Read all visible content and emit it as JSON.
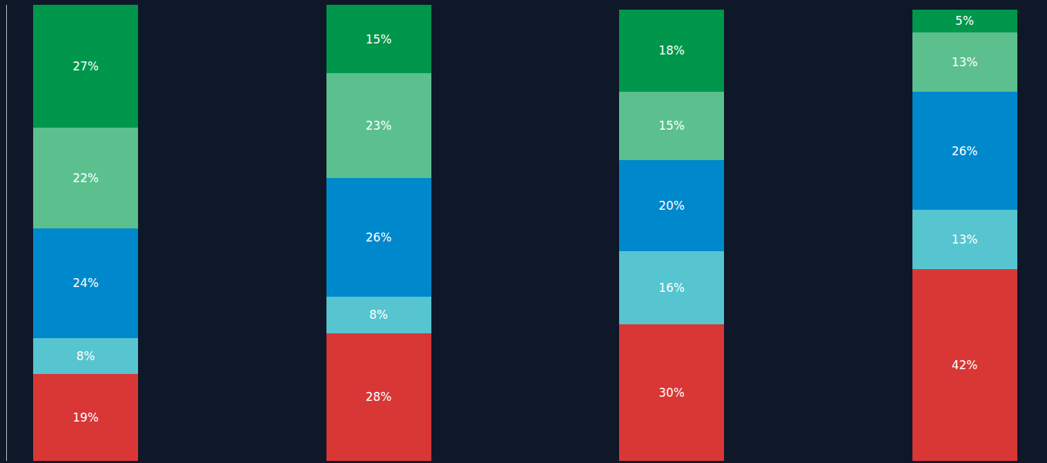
{
  "chart_data": {
    "type": "bar",
    "stacked": true,
    "data_labels": true,
    "tick_labels": false,
    "grid": false,
    "categories": [
      null,
      null,
      null,
      null
    ],
    "ylim": [
      0,
      100
    ],
    "series": [
      {
        "color": "#d93636",
        "values": [
          19,
          28,
          30,
          42
        ],
        "value_labels": [
          "19%",
          "28%",
          "30%",
          "42%"
        ]
      },
      {
        "color": "#56c5d0",
        "values": [
          8,
          8,
          16,
          13
        ],
        "value_labels": [
          "8%",
          "8%",
          "16%",
          "13%"
        ]
      },
      {
        "color": "#0088cc",
        "values": [
          24,
          26,
          20,
          26
        ],
        "value_labels": [
          "24%",
          "26%",
          "20%",
          "26%"
        ]
      },
      {
        "color": "#5bc08e",
        "values": [
          22,
          23,
          15,
          13
        ],
        "value_labels": [
          "22%",
          "23%",
          "15%",
          "13%"
        ]
      },
      {
        "color": "#00964b",
        "values": [
          27,
          15,
          18,
          5
        ],
        "value_labels": [
          "27%",
          "15%",
          "18%",
          "5%"
        ]
      }
    ]
  }
}
